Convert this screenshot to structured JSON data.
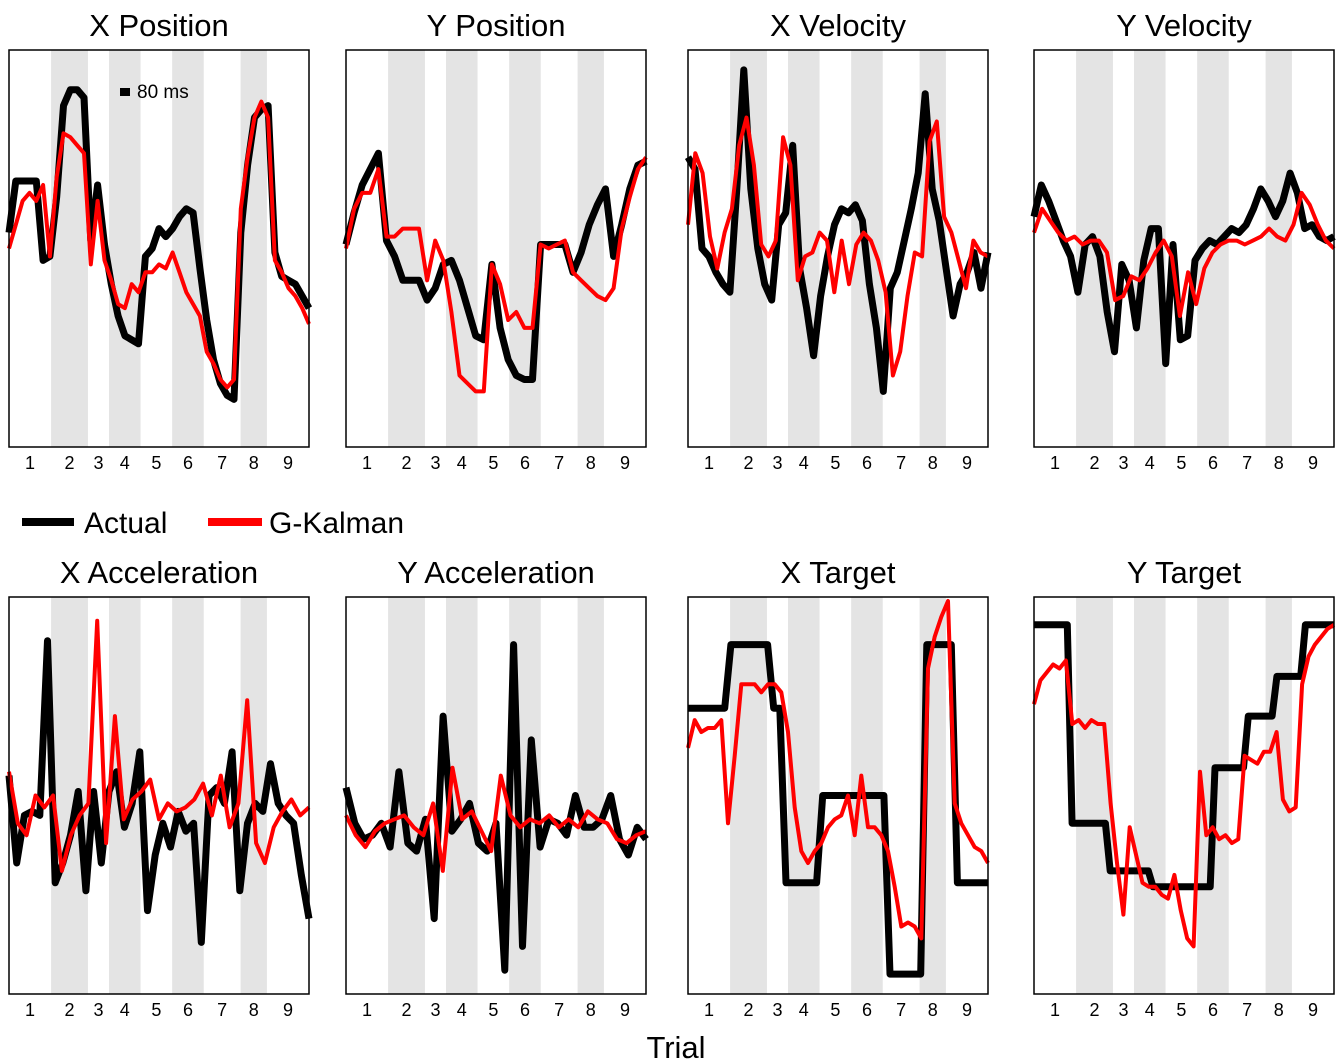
{
  "figure": {
    "xlabel": "Trial",
    "scale_bar_label": "80 ms",
    "colors": {
      "actual": "#000000",
      "g_kalman": "#ff0000",
      "trial_band": "#e4e4e4",
      "frame": "#000000"
    }
  },
  "legend": {
    "items": [
      {
        "name": "Actual",
        "color": "#000000"
      },
      {
        "name": "G-Kalman",
        "color": "#ff0000"
      }
    ]
  },
  "chart_data": [
    {
      "type": "line",
      "title": "X Position",
      "trial_ticks": [
        "1",
        "2",
        "3",
        "4",
        "5",
        "6",
        "7",
        "8",
        "9"
      ],
      "trial_bounds": [
        0,
        8,
        15,
        19,
        25,
        31,
        37,
        44,
        49,
        57
      ],
      "ylim": [
        0,
        1
      ],
      "series": [
        {
          "name": "Actual",
          "values": [
            0.54,
            0.67,
            0.67,
            0.67,
            0.67,
            0.47,
            0.48,
            0.63,
            0.86,
            0.9,
            0.9,
            0.88,
            0.52,
            0.66,
            0.51,
            0.41,
            0.33,
            0.28,
            0.27,
            0.26,
            0.48,
            0.5,
            0.55,
            0.53,
            0.55,
            0.58,
            0.6,
            0.59,
            0.45,
            0.32,
            0.22,
            0.16,
            0.13,
            0.12,
            0.54,
            0.71,
            0.83,
            0.85,
            0.86,
            0.49,
            0.43,
            0.42,
            0.41,
            0.38,
            0.35
          ]
        },
        {
          "name": "G-Kalman",
          "values": [
            0.5,
            0.56,
            0.62,
            0.64,
            0.62,
            0.66,
            0.48,
            0.68,
            0.79,
            0.78,
            0.76,
            0.74,
            0.46,
            0.62,
            0.47,
            0.42,
            0.36,
            0.35,
            0.41,
            0.39,
            0.44,
            0.44,
            0.46,
            0.45,
            0.49,
            0.44,
            0.39,
            0.36,
            0.33,
            0.24,
            0.21,
            0.17,
            0.15,
            0.17,
            0.6,
            0.73,
            0.83,
            0.87,
            0.83,
            0.47,
            0.44,
            0.4,
            0.38,
            0.35,
            0.31
          ]
        }
      ]
    },
    {
      "type": "line",
      "title": "Y Position",
      "trial_ticks": [
        "1",
        "2",
        "3",
        "4",
        "5",
        "6",
        "7",
        "8",
        "9"
      ],
      "trial_bounds": [
        0,
        8,
        15,
        19,
        25,
        31,
        37,
        44,
        49,
        57
      ],
      "ylim": [
        0,
        1
      ],
      "series": [
        {
          "name": "Actual",
          "values": [
            0.51,
            0.59,
            0.66,
            0.7,
            0.74,
            0.52,
            0.48,
            0.42,
            0.42,
            0.42,
            0.37,
            0.4,
            0.46,
            0.47,
            0.42,
            0.35,
            0.28,
            0.27,
            0.46,
            0.3,
            0.22,
            0.18,
            0.17,
            0.17,
            0.51,
            0.51,
            0.51,
            0.51,
            0.44,
            0.49,
            0.56,
            0.61,
            0.65,
            0.48,
            0.56,
            0.65,
            0.71,
            0.72
          ]
        },
        {
          "name": "G-Kalman",
          "values": [
            0.5,
            0.6,
            0.64,
            0.64,
            0.7,
            0.53,
            0.53,
            0.55,
            0.55,
            0.55,
            0.42,
            0.52,
            0.47,
            0.34,
            0.18,
            0.16,
            0.14,
            0.14,
            0.46,
            0.41,
            0.32,
            0.34,
            0.3,
            0.3,
            0.51,
            0.5,
            0.51,
            0.52,
            0.44,
            0.42,
            0.4,
            0.38,
            0.37,
            0.4,
            0.55,
            0.63,
            0.7,
            0.73
          ]
        }
      ]
    },
    {
      "type": "line",
      "title": "X Velocity",
      "trial_ticks": [
        "1",
        "2",
        "3",
        "4",
        "5",
        "6",
        "7",
        "8",
        "9"
      ],
      "trial_bounds": [
        0,
        8,
        15,
        19,
        25,
        31,
        37,
        44,
        49,
        57
      ],
      "ylim": [
        0,
        1
      ],
      "series": [
        {
          "name": "Actual",
          "values": [
            0.73,
            0.7,
            0.5,
            0.48,
            0.44,
            0.41,
            0.39,
            0.65,
            0.95,
            0.65,
            0.5,
            0.41,
            0.37,
            0.56,
            0.59,
            0.76,
            0.45,
            0.35,
            0.23,
            0.38,
            0.48,
            0.56,
            0.6,
            0.59,
            0.61,
            0.57,
            0.41,
            0.3,
            0.14,
            0.4,
            0.44,
            0.52,
            0.6,
            0.69,
            0.89,
            0.65,
            0.57,
            0.45,
            0.33,
            0.41,
            0.44,
            0.49,
            0.4,
            0.49
          ]
        },
        {
          "name": "G-Kalman",
          "values": [
            0.56,
            0.74,
            0.69,
            0.53,
            0.45,
            0.54,
            0.6,
            0.76,
            0.83,
            0.71,
            0.51,
            0.48,
            0.52,
            0.78,
            0.71,
            0.42,
            0.48,
            0.49,
            0.54,
            0.52,
            0.39,
            0.52,
            0.41,
            0.51,
            0.54,
            0.52,
            0.47,
            0.39,
            0.18,
            0.24,
            0.38,
            0.49,
            0.48,
            0.77,
            0.82,
            0.58,
            0.54,
            0.47,
            0.4,
            0.52,
            0.49,
            0.48
          ]
        }
      ]
    },
    {
      "type": "line",
      "title": "Y Velocity",
      "trial_ticks": [
        "1",
        "2",
        "3",
        "4",
        "5",
        "6",
        "7",
        "8",
        "9"
      ],
      "trial_bounds": [
        0,
        8,
        15,
        19,
        25,
        31,
        37,
        44,
        49,
        57
      ],
      "ylim": [
        0,
        1
      ],
      "series": [
        {
          "name": "Actual",
          "values": [
            0.58,
            0.66,
            0.62,
            0.57,
            0.52,
            0.48,
            0.39,
            0.51,
            0.53,
            0.48,
            0.34,
            0.24,
            0.46,
            0.42,
            0.3,
            0.47,
            0.55,
            0.55,
            0.21,
            0.51,
            0.27,
            0.28,
            0.47,
            0.5,
            0.52,
            0.51,
            0.53,
            0.55,
            0.54,
            0.56,
            0.6,
            0.65,
            0.62,
            0.58,
            0.62,
            0.69,
            0.64,
            0.55,
            0.56,
            0.53,
            0.52,
            0.53
          ]
        },
        {
          "name": "G-Kalman",
          "values": [
            0.54,
            0.6,
            0.57,
            0.54,
            0.52,
            0.53,
            0.51,
            0.52,
            0.52,
            0.49,
            0.37,
            0.38,
            0.43,
            0.42,
            0.45,
            0.49,
            0.52,
            0.48,
            0.33,
            0.44,
            0.36,
            0.45,
            0.49,
            0.51,
            0.52,
            0.52,
            0.51,
            0.52,
            0.53,
            0.55,
            0.53,
            0.52,
            0.56,
            0.64,
            0.61,
            0.56,
            0.52,
            0.5
          ]
        }
      ]
    },
    {
      "type": "line",
      "title": "X  Acceleration",
      "trial_ticks": [
        "1",
        "2",
        "3",
        "4",
        "5",
        "6",
        "7",
        "8",
        "9"
      ],
      "trial_bounds": [
        0,
        8,
        15,
        19,
        25,
        31,
        37,
        44,
        49,
        57
      ],
      "ylim": [
        0,
        1
      ],
      "series": [
        {
          "name": "Actual",
          "values": [
            0.55,
            0.33,
            0.45,
            0.46,
            0.45,
            0.89,
            0.28,
            0.33,
            0.4,
            0.51,
            0.26,
            0.51,
            0.33,
            0.51,
            0.56,
            0.42,
            0.48,
            0.61,
            0.21,
            0.35,
            0.43,
            0.37,
            0.46,
            0.41,
            0.43,
            0.13,
            0.5,
            0.52,
            0.48,
            0.61,
            0.26,
            0.43,
            0.48,
            0.46,
            0.58,
            0.48,
            0.45,
            0.43,
            0.3,
            0.19
          ]
        },
        {
          "name": "G-Kalman",
          "values": [
            0.56,
            0.43,
            0.4,
            0.5,
            0.47,
            0.5,
            0.31,
            0.4,
            0.45,
            0.48,
            0.94,
            0.38,
            0.7,
            0.44,
            0.49,
            0.51,
            0.54,
            0.44,
            0.48,
            0.46,
            0.47,
            0.49,
            0.53,
            0.45,
            0.55,
            0.42,
            0.48,
            0.74,
            0.38,
            0.33,
            0.42,
            0.46,
            0.49,
            0.45,
            0.47
          ]
        }
      ]
    },
    {
      "type": "line",
      "title": "Y  Acceleration",
      "trial_ticks": [
        "1",
        "2",
        "3",
        "4",
        "5",
        "6",
        "7",
        "8",
        "9"
      ],
      "trial_bounds": [
        0,
        8,
        15,
        19,
        25,
        31,
        37,
        44,
        49,
        57
      ],
      "ylim": [
        0,
        1
      ],
      "series": [
        {
          "name": "Actual",
          "values": [
            0.52,
            0.43,
            0.39,
            0.4,
            0.43,
            0.37,
            0.56,
            0.38,
            0.36,
            0.44,
            0.19,
            0.7,
            0.41,
            0.44,
            0.48,
            0.38,
            0.36,
            0.43,
            0.06,
            0.88,
            0.12,
            0.64,
            0.37,
            0.44,
            0.43,
            0.4,
            0.5,
            0.42,
            0.42,
            0.44,
            0.5,
            0.39,
            0.35,
            0.42,
            0.39
          ]
        },
        {
          "name": "G-Kalman",
          "values": [
            0.45,
            0.4,
            0.37,
            0.41,
            0.43,
            0.44,
            0.45,
            0.42,
            0.4,
            0.48,
            0.31,
            0.57,
            0.44,
            0.46,
            0.41,
            0.36,
            0.55,
            0.45,
            0.42,
            0.44,
            0.43,
            0.45,
            0.42,
            0.44,
            0.42,
            0.46,
            0.44,
            0.43,
            0.39,
            0.38,
            0.4,
            0.41
          ]
        }
      ]
    },
    {
      "type": "line",
      "title": "X  Target",
      "trial_ticks": [
        "1",
        "2",
        "3",
        "4",
        "5",
        "6",
        "7",
        "8",
        "9"
      ],
      "trial_bounds": [
        0,
        8,
        15,
        19,
        25,
        31,
        37,
        44,
        49,
        57
      ],
      "ylim": [
        0,
        1
      ],
      "series": [
        {
          "name": "Actual",
          "values": [
            0.72,
            0.72,
            0.72,
            0.72,
            0.72,
            0.72,
            0.72,
            0.88,
            0.88,
            0.88,
            0.88,
            0.88,
            0.88,
            0.88,
            0.72,
            0.72,
            0.28,
            0.28,
            0.28,
            0.28,
            0.28,
            0.28,
            0.5,
            0.5,
            0.5,
            0.5,
            0.5,
            0.5,
            0.5,
            0.5,
            0.5,
            0.5,
            0.5,
            0.05,
            0.05,
            0.05,
            0.05,
            0.05,
            0.05,
            0.88,
            0.88,
            0.88,
            0.88,
            0.88,
            0.28,
            0.28,
            0.28,
            0.28,
            0.28,
            0.28
          ]
        },
        {
          "name": "G-Kalman",
          "values": [
            0.62,
            0.69,
            0.66,
            0.67,
            0.67,
            0.69,
            0.43,
            0.6,
            0.78,
            0.78,
            0.78,
            0.76,
            0.78,
            0.78,
            0.76,
            0.66,
            0.47,
            0.36,
            0.33,
            0.36,
            0.38,
            0.42,
            0.44,
            0.45,
            0.5,
            0.4,
            0.55,
            0.42,
            0.42,
            0.4,
            0.36,
            0.27,
            0.17,
            0.18,
            0.17,
            0.14,
            0.82,
            0.9,
            0.95,
            0.99,
            0.48,
            0.43,
            0.4,
            0.37,
            0.36,
            0.33
          ]
        }
      ]
    },
    {
      "type": "line",
      "title": "Y  Target",
      "trial_ticks": [
        "1",
        "2",
        "3",
        "4",
        "5",
        "6",
        "7",
        "8",
        "9"
      ],
      "trial_bounds": [
        0,
        8,
        15,
        19,
        25,
        31,
        37,
        44,
        49,
        57
      ],
      "ylim": [
        0,
        1
      ],
      "series": [
        {
          "name": "Actual",
          "values": [
            0.93,
            0.93,
            0.93,
            0.93,
            0.93,
            0.93,
            0.93,
            0.93,
            0.43,
            0.43,
            0.43,
            0.43,
            0.43,
            0.43,
            0.43,
            0.43,
            0.31,
            0.31,
            0.31,
            0.31,
            0.31,
            0.31,
            0.31,
            0.31,
            0.31,
            0.27,
            0.27,
            0.27,
            0.27,
            0.27,
            0.27,
            0.27,
            0.27,
            0.27,
            0.27,
            0.27,
            0.27,
            0.27,
            0.57,
            0.57,
            0.57,
            0.57,
            0.57,
            0.57,
            0.57,
            0.7,
            0.7,
            0.7,
            0.7,
            0.7,
            0.7,
            0.8,
            0.8,
            0.8,
            0.8,
            0.8,
            0.8,
            0.93,
            0.93,
            0.93,
            0.93,
            0.93,
            0.93,
            0.93
          ]
        },
        {
          "name": "G-Kalman",
          "values": [
            0.73,
            0.79,
            0.81,
            0.83,
            0.82,
            0.84,
            0.68,
            0.69,
            0.67,
            0.69,
            0.68,
            0.68,
            0.48,
            0.33,
            0.2,
            0.42,
            0.35,
            0.28,
            0.27,
            0.27,
            0.25,
            0.24,
            0.3,
            0.21,
            0.14,
            0.12,
            0.56,
            0.4,
            0.42,
            0.39,
            0.4,
            0.38,
            0.39,
            0.6,
            0.59,
            0.58,
            0.61,
            0.61,
            0.66,
            0.49,
            0.46,
            0.47,
            0.78,
            0.85,
            0.88,
            0.9,
            0.92,
            0.93
          ]
        }
      ]
    }
  ]
}
